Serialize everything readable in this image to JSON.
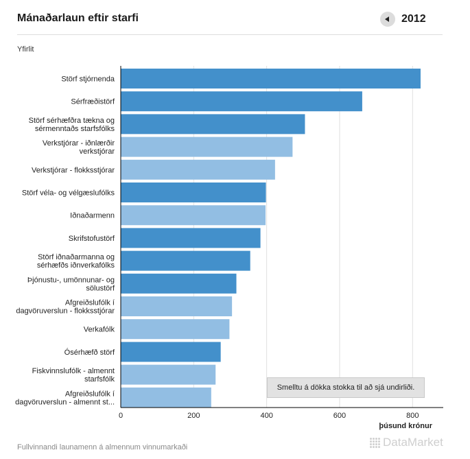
{
  "header": {
    "title": "Mánaðarlaun eftir starfi",
    "year": "2012",
    "prev_icon": "triangle-left-icon"
  },
  "breadcrumb": "Yfirlit",
  "hint": "Smelltu á dökka stokka til að sjá undirliði.",
  "footer_note": "Fullvinnandi launamenn á almennum vinnumarkaði",
  "logo_text": "DataMarket",
  "colors": {
    "dark": "#4390cb",
    "light": "#92bee3",
    "grid": "#e0e0e0",
    "axis": "#000000"
  },
  "chart_data": {
    "type": "bar",
    "orientation": "horizontal",
    "categories": [
      [
        "Störf stjórnenda"
      ],
      [
        "Sérfræðistörf"
      ],
      [
        "Störf sérhæfðra tækna og",
        "sérmenntaðs starfsfólks"
      ],
      [
        "Verkstjórar - iðnlærðir",
        "verkstjórar"
      ],
      [
        "Verkstjórar - flokksstjórar"
      ],
      [
        "Störf véla- og vélgæslufólks"
      ],
      [
        "Iðnaðarmenn"
      ],
      [
        "Skrifstofustörf"
      ],
      [
        "Störf iðnaðarmanna og",
        "sérhæfðs iðnverkafólks"
      ],
      [
        "Þjónustu-, umönnunar- og",
        "sölustörf"
      ],
      [
        "Afgreiðslufólk í",
        "dagvöruverslun - flokksstjórar"
      ],
      [
        "Verkafólk"
      ],
      [
        "Ósérhæfð störf"
      ],
      [
        "Fiskvinnslufólk - almennt",
        "starfsfólk"
      ],
      [
        "Afgreiðslufólk í",
        "dagvöruverslun - almennt st..."
      ]
    ],
    "values": [
      822,
      662,
      505,
      471,
      423,
      398,
      397,
      383,
      355,
      317,
      305,
      298,
      274,
      260,
      248
    ],
    "drillable": [
      true,
      true,
      true,
      false,
      false,
      true,
      false,
      true,
      true,
      true,
      false,
      false,
      true,
      false,
      false
    ],
    "xlim": [
      0,
      850
    ],
    "xticks": [
      0,
      200,
      400,
      600,
      800
    ],
    "xlabel": "þúsund krónur",
    "grid": true
  }
}
